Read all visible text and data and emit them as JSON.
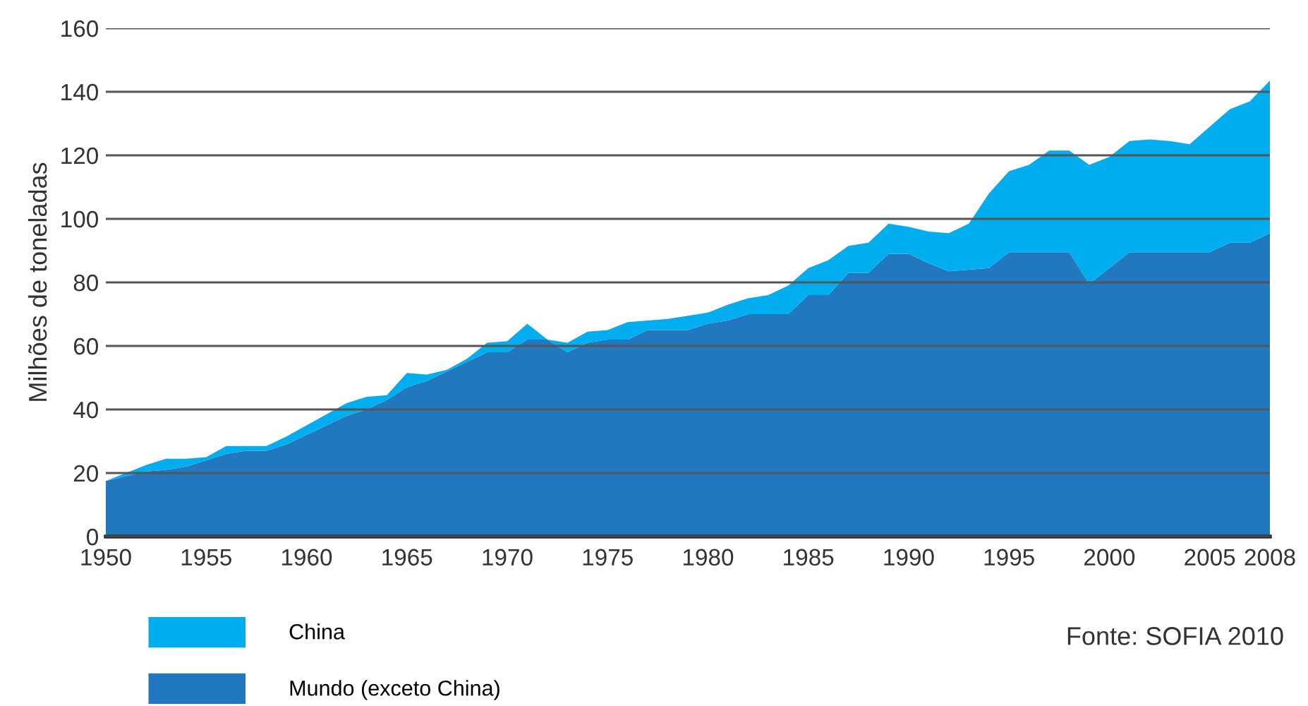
{
  "chart_data": {
    "type": "area",
    "stacked": true,
    "ylabel": "Milhões de toneladas",
    "x": [
      1950,
      1951,
      1952,
      1953,
      1954,
      1955,
      1956,
      1957,
      1958,
      1959,
      1960,
      1961,
      1962,
      1963,
      1964,
      1965,
      1966,
      1967,
      1968,
      1969,
      1970,
      1971,
      1972,
      1973,
      1974,
      1975,
      1976,
      1977,
      1978,
      1979,
      1980,
      1981,
      1982,
      1983,
      1984,
      1985,
      1986,
      1987,
      1988,
      1989,
      1990,
      1991,
      1992,
      1993,
      1994,
      1995,
      1996,
      1997,
      1998,
      1999,
      2000,
      2001,
      2002,
      2003,
      2004,
      2005,
      2006,
      2007,
      2008
    ],
    "series": [
      {
        "name": "Mundo (exceto China)",
        "color": "#2278bf",
        "values": [
          17.5,
          19,
          20.5,
          21,
          22,
          24,
          26,
          27,
          27,
          29,
          32,
          35,
          38,
          40,
          43,
          47,
          49,
          52,
          55,
          58,
          58,
          62,
          62,
          58,
          61,
          62,
          62,
          65,
          65,
          65,
          67,
          68,
          70,
          70,
          70,
          76,
          76,
          83,
          83,
          89,
          89,
          86,
          83.5,
          84,
          84.5,
          89.5,
          89.5,
          89.5,
          89.5,
          79.5,
          84.5,
          89.5,
          89.5,
          89.5,
          89.5,
          89.5,
          92.5,
          92.5,
          95.5
        ]
      },
      {
        "name": "China",
        "color": "#00aeef",
        "values": [
          0,
          1,
          2,
          3.5,
          2.5,
          1,
          2.5,
          1.5,
          1.5,
          2.5,
          3,
          3.5,
          4,
          4,
          1.5,
          4.5,
          2,
          0.5,
          1,
          3,
          3.5,
          5,
          0,
          3,
          3.5,
          3,
          5.5,
          3,
          3.5,
          4.5,
          3.5,
          5,
          5,
          6,
          9,
          8.5,
          11,
          8.5,
          9.5,
          9.5,
          8.5,
          10,
          12,
          14.5,
          23.5,
          25.5,
          27.5,
          32,
          32,
          37.5,
          35,
          35,
          35.5,
          35,
          34,
          39.5,
          42,
          44.5,
          48
        ]
      }
    ],
    "xlim": [
      1950,
      2008
    ],
    "xticks": [
      1950,
      1955,
      1960,
      1965,
      1970,
      1975,
      1980,
      1985,
      1990,
      1995,
      2000,
      2005,
      2008
    ],
    "ylim": [
      0,
      160
    ],
    "yticks": [
      0,
      20,
      40,
      60,
      80,
      100,
      120,
      140,
      160
    ],
    "grid": "y",
    "legend": "bottom",
    "annotations": [
      "Fonte: SOFIA 2010"
    ]
  }
}
